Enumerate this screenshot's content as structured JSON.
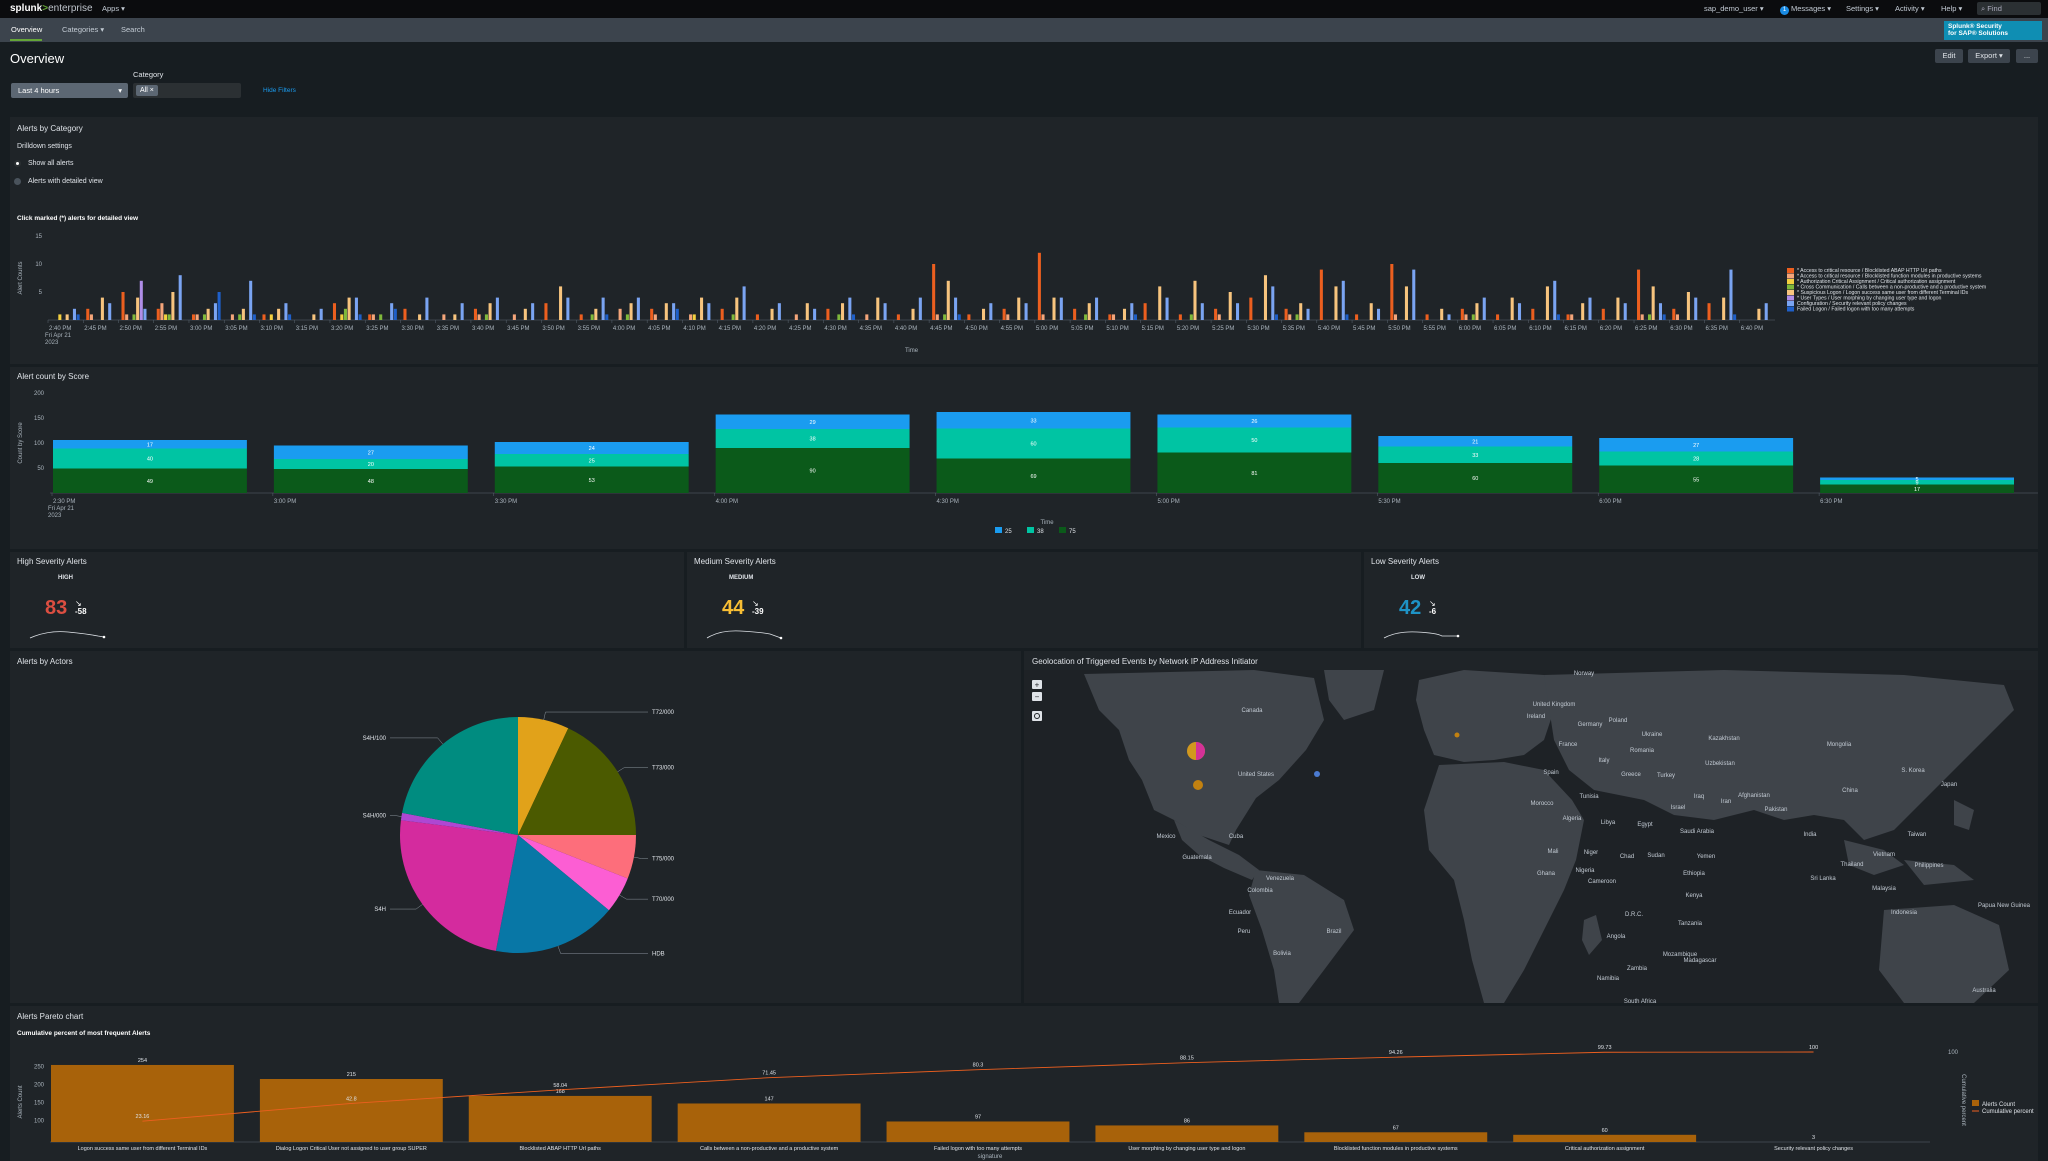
{
  "topbar": {
    "logo_splunk": "splunk",
    "logo_gt": ">",
    "logo_enterprise": "enterprise",
    "apps": "Apps ▾",
    "user": "sap_demo_user ▾",
    "messages_count": "1",
    "messages": "Messages ▾",
    "settings": "Settings ▾",
    "activity": "Activity ▾",
    "help": "Help ▾",
    "find_placeholder": "Find"
  },
  "appbar": {
    "overview": "Overview",
    "categories": "Categories ▾",
    "search": "Search",
    "brand_line1": "Splunk® Security",
    "brand_line2": "for SAP® Solutions"
  },
  "header": {
    "title": "Overview",
    "edit": "Edit",
    "export": "Export ▾",
    "more": "..."
  },
  "filters": {
    "time_value": "Last 4 hours",
    "category_label": "Category",
    "category_chip": "All ×",
    "hide_filters": "Hide Filters"
  },
  "alerts_by_category": {
    "title": "Alerts by Category",
    "drilldown": "Drilldown settings",
    "radio_all": "Show all alerts",
    "radio_detail": "Alerts with detailed view",
    "subtitle": "Click marked (*) alerts for detailed view",
    "ylabel": "Alert Counts",
    "xlabel": "Time",
    "first_tick_date": "Fri Apr 21",
    "first_tick_year": "2023",
    "yticks": [
      "5",
      "10",
      "15"
    ],
    "xticks": [
      "2:40 PM",
      "2:45 PM",
      "2:50 PM",
      "2:55 PM",
      "3:00 PM",
      "3:05 PM",
      "3:10 PM",
      "3:15 PM",
      "3:20 PM",
      "3:25 PM",
      "3:30 PM",
      "3:35 PM",
      "3:40 PM",
      "3:45 PM",
      "3:50 PM",
      "3:55 PM",
      "4:00 PM",
      "4:05 PM",
      "4:10 PM",
      "4:15 PM",
      "4:20 PM",
      "4:25 PM",
      "4:30 PM",
      "4:35 PM",
      "4:40 PM",
      "4:45 PM",
      "4:50 PM",
      "4:55 PM",
      "5:00 PM",
      "5:05 PM",
      "5:10 PM",
      "5:15 PM",
      "5:20 PM",
      "5:25 PM",
      "5:30 PM",
      "5:35 PM",
      "5:40 PM",
      "5:45 PM",
      "5:50 PM",
      "5:55 PM",
      "6:00 PM",
      "6:05 PM",
      "6:10 PM",
      "6:15 PM",
      "6:20 PM",
      "6:25 PM",
      "6:30 PM",
      "6:35 PM",
      "6:40 PM"
    ],
    "legend": [
      {
        "label": "* Access to critical resource / Blocklisted ABAP HTTP Url paths",
        "color": "#ec5f1f"
      },
      {
        "label": "* Access to critical resource / Blocklisted function modules in productive systems",
        "color": "#f4a57a"
      },
      {
        "label": "* Authorization Critical Assignment / Critical authorization assignment",
        "color": "#f4d03f"
      },
      {
        "label": "* Cross Communication / Calls between a non-productive and a productive system",
        "color": "#7fb83b"
      },
      {
        "label": "* Suspicious Logon / Logon success same user from different Terminal IDs",
        "color": "#f7c47e"
      },
      {
        "label": "* User Types / User morphing by changing user type and logon",
        "color": "#b08ee8"
      },
      {
        "label": "Configuration / Security relevant policy changes",
        "color": "#7aa4f2"
      },
      {
        "label": "Failed Logon / Failed logon with too many attempts",
        "color": "#1f5fc8"
      }
    ]
  },
  "alert_count_by_score": {
    "title": "Alert count by Score",
    "ylabel": "Count by Score",
    "xlabel": "Time",
    "first_tick_date": "Fri Apr 21",
    "first_tick_year": "2023",
    "yticks": [
      "50",
      "100",
      "150",
      "200"
    ],
    "xticks": [
      "2:30 PM",
      "3:00 PM",
      "3:30 PM",
      "4:00 PM",
      "4:30 PM",
      "5:00 PM",
      "5:30 PM",
      "6:00 PM",
      "6:30 PM"
    ],
    "legend": [
      {
        "label": "25",
        "color": "#1a9cf0"
      },
      {
        "label": "38",
        "color": "#00c4a3"
      },
      {
        "label": "75",
        "color": "#0b5a1a"
      }
    ]
  },
  "severity": {
    "high": {
      "title": "High Severity Alerts",
      "label": "HIGH",
      "value": "83",
      "delta": "-58",
      "color": "#dc4e41"
    },
    "medium": {
      "title": "Medium Severity Alerts",
      "label": "MEDIUM",
      "value": "44",
      "delta": "-39",
      "color": "#f8be34"
    },
    "low": {
      "title": "Low Severity Alerts",
      "label": "LOW",
      "value": "42",
      "delta": "-6",
      "color": "#1e93c6"
    }
  },
  "alerts_by_actors": {
    "title": "Alerts by Actors"
  },
  "geolocation": {
    "title": "Geolocation of Triggered Events by Network IP Address Initiator",
    "countries": [
      "Norway",
      "United Kingdom",
      "Ireland",
      "Germany",
      "Poland",
      "Ukraine",
      "Kazakhstan",
      "Mongolia",
      "France",
      "Romania",
      "Uzbekistan",
      "Canada",
      "Italy",
      "Spain",
      "Greece",
      "Turkey",
      "United States",
      "Tunisia",
      "Iraq",
      "Afghanistan",
      "China",
      "S. Korea",
      "Morocco",
      "Iran",
      "Japan",
      "Algeria",
      "Libya",
      "Egypt",
      "Israel",
      "Pakistan",
      "Mexico",
      "Saudi Arabia",
      "India",
      "Taiwan",
      "Cuba",
      "Guatemala",
      "Mali",
      "Niger",
      "Chad",
      "Sudan",
      "Yemen",
      "Vietnam",
      "Philippines",
      "Thailand",
      "Venezuela",
      "Ghana",
      "Nigeria",
      "Cameroon",
      "Ethiopia",
      "Sri Lanka",
      "Colombia",
      "Ecuador",
      "Kenya",
      "Malaysia",
      "Peru",
      "Brazil",
      "D.R.C.",
      "Tanzania",
      "Papua New Guinea",
      "Indonesia",
      "Bolivia",
      "Angola",
      "Mozambique",
      "Zambia",
      "Madagascar",
      "Namibia",
      "South Africa",
      "Australia"
    ]
  },
  "pareto": {
    "title": "Alerts Pareto chart",
    "subtitle": "Cumulative percent of most frequent Alerts",
    "ylabel": "Alerts Count",
    "y2label": "Cumulative percent",
    "xlabel": "signature",
    "yticks": [
      "100",
      "150",
      "200",
      "250"
    ],
    "y2ticks": [
      "100"
    ],
    "legend": [
      "Alerts Count",
      "Cumulative percent"
    ]
  },
  "chart_data": [
    {
      "type": "bar",
      "name": "alerts_by_category",
      "title": "Alerts by Category",
      "xlabel": "Time",
      "ylabel": "Alert Counts",
      "ylim": [
        0,
        15
      ],
      "legend_position": "right",
      "series_colors": [
        "#ec5f1f",
        "#f4a57a",
        "#f4d03f",
        "#7fb83b",
        "#f7c47e",
        "#b08ee8",
        "#7aa4f2",
        "#1f5fc8"
      ],
      "groups": [
        [
          0,
          0,
          1,
          0,
          1,
          0,
          2,
          1
        ],
        [
          2,
          1,
          0,
          0,
          4,
          0,
          3,
          0
        ],
        [
          5,
          1,
          0,
          1,
          4,
          7,
          2,
          0
        ],
        [
          2,
          3,
          1,
          1,
          5,
          0,
          8,
          0
        ],
        [
          1,
          1,
          0,
          1,
          2,
          0,
          3,
          5
        ],
        [
          0,
          1,
          0,
          1,
          2,
          0,
          7,
          1
        ],
        [
          1,
          0,
          1,
          0,
          2,
          0,
          3,
          1
        ],
        [
          0,
          0,
          0,
          0,
          1,
          0,
          2,
          0
        ],
        [
          3,
          0,
          1,
          2,
          4,
          0,
          4,
          1
        ],
        [
          1,
          1,
          0,
          1,
          0,
          0,
          3,
          2
        ],
        [
          2,
          0,
          0,
          0,
          1,
          0,
          4,
          0
        ],
        [
          0,
          1,
          0,
          0,
          1,
          0,
          3,
          0
        ],
        [
          2,
          1,
          0,
          1,
          3,
          0,
          4,
          0
        ],
        [
          0,
          1,
          0,
          0,
          2,
          0,
          3,
          0
        ],
        [
          3,
          0,
          0,
          0,
          6,
          0,
          4,
          0
        ],
        [
          1,
          0,
          0,
          1,
          2,
          0,
          4,
          1
        ],
        [
          0,
          2,
          0,
          1,
          3,
          0,
          4,
          0
        ],
        [
          2,
          1,
          0,
          0,
          3,
          0,
          3,
          2
        ],
        [
          0,
          1,
          1,
          0,
          4,
          0,
          3,
          0
        ],
        [
          2,
          0,
          0,
          1,
          4,
          0,
          6,
          0
        ],
        [
          1,
          0,
          0,
          0,
          2,
          0,
          3,
          0
        ],
        [
          0,
          1,
          0,
          0,
          3,
          0,
          2,
          0
        ],
        [
          2,
          0,
          0,
          1,
          3,
          0,
          4,
          1
        ],
        [
          0,
          1,
          0,
          0,
          4,
          0,
          3,
          0
        ],
        [
          1,
          0,
          0,
          0,
          2,
          0,
          4,
          0
        ],
        [
          10,
          1,
          0,
          1,
          7,
          0,
          4,
          1
        ],
        [
          1,
          0,
          0,
          0,
          2,
          0,
          3,
          0
        ],
        [
          2,
          1,
          0,
          0,
          4,
          0,
          3,
          0
        ],
        [
          12,
          1,
          0,
          0,
          4,
          0,
          4,
          0
        ],
        [
          2,
          0,
          0,
          1,
          3,
          0,
          4,
          0
        ],
        [
          1,
          1,
          0,
          0,
          2,
          0,
          3,
          1
        ],
        [
          3,
          0,
          0,
          0,
          6,
          0,
          4,
          0
        ],
        [
          1,
          0,
          0,
          1,
          7,
          0,
          3,
          0
        ],
        [
          2,
          1,
          0,
          0,
          5,
          0,
          3,
          0
        ],
        [
          4,
          0,
          0,
          0,
          8,
          0,
          6,
          1
        ],
        [
          2,
          1,
          0,
          1,
          3,
          0,
          2,
          0
        ],
        [
          9,
          0,
          0,
          0,
          6,
          0,
          7,
          1
        ],
        [
          1,
          0,
          0,
          0,
          3,
          0,
          2,
          0
        ],
        [
          10,
          1,
          0,
          0,
          6,
          0,
          9,
          0
        ],
        [
          1,
          0,
          0,
          0,
          2,
          0,
          1,
          0
        ],
        [
          2,
          1,
          0,
          1,
          3,
          0,
          4,
          0
        ],
        [
          1,
          0,
          0,
          0,
          4,
          0,
          3,
          0
        ],
        [
          2,
          0,
          0,
          0,
          6,
          0,
          7,
          1
        ],
        [
          1,
          1,
          0,
          0,
          3,
          0,
          4,
          0
        ],
        [
          2,
          0,
          0,
          0,
          4,
          0,
          3,
          0
        ],
        [
          9,
          1,
          0,
          1,
          6,
          0,
          3,
          1
        ],
        [
          2,
          1,
          0,
          0,
          5,
          0,
          4,
          0
        ],
        [
          3,
          0,
          0,
          0,
          4,
          0,
          9,
          1
        ],
        [
          0,
          0,
          0,
          0,
          2,
          0,
          3,
          0
        ]
      ]
    },
    {
      "type": "bar",
      "name": "alert_count_by_score",
      "title": "Alert count by Score",
      "stacked": true,
      "xlabel": "Time",
      "ylabel": "Count by Score",
      "ylim": [
        0,
        200
      ],
      "legend_position": "bottom",
      "categories": [
        "2:30 PM",
        "3:00 PM",
        "3:30 PM",
        "4:00 PM",
        "4:30 PM",
        "5:00 PM",
        "5:30 PM",
        "6:00 PM",
        "6:30 PM"
      ],
      "series": [
        {
          "name": "75",
          "color": "#0b5a1a",
          "values": [
            49,
            48,
            53,
            90,
            69,
            81,
            60,
            55,
            17
          ]
        },
        {
          "name": "38",
          "color": "#00c4a3",
          "values": [
            40,
            20,
            25,
            38,
            60,
            50,
            33,
            28,
            9
          ]
        },
        {
          "name": "25",
          "color": "#1a9cf0",
          "values": [
            17,
            27,
            24,
            29,
            33,
            26,
            21,
            27,
            5
          ]
        }
      ]
    },
    {
      "type": "pie",
      "name": "alerts_by_actors",
      "title": "Alerts by Actors",
      "slices": [
        {
          "label": "T72/000",
          "value": 7,
          "color": "#e1a21a"
        },
        {
          "label": "T73/000",
          "value": 18,
          "color": "#4b5a00"
        },
        {
          "label": "T75/000",
          "value": 6,
          "color": "#fd6e7b"
        },
        {
          "label": "T70/000",
          "value": 5,
          "color": "#fc5ed3"
        },
        {
          "label": "HDB",
          "value": 17,
          "color": "#0877a6"
        },
        {
          "label": "S4H",
          "value": 24,
          "color": "#d42b9e"
        },
        {
          "label": "S4H/000",
          "value": 1,
          "color": "#ae47d3"
        },
        {
          "label": "S4H/100",
          "value": 22,
          "color": "#008c80"
        }
      ]
    },
    {
      "type": "bar",
      "name": "alerts_pareto",
      "title": "Alerts Pareto chart",
      "subtitle": "Cumulative percent of most frequent Alerts",
      "xlabel": "signature",
      "ylabel": "Alerts Count",
      "y2label": "Cumulative percent",
      "ylim": [
        0,
        300
      ],
      "y2lim": [
        0,
        100
      ],
      "legend_position": "right",
      "categories": [
        "Logon success same user from different Terminal IDs",
        "Dialog Logon Critical User not assigned to user group SUPER",
        "Blocklisted ABAP HTTP Url paths",
        "Calls between a non-productive and a productive system",
        "Failed logon with too many attempts",
        "User morphing by changing user type and logon",
        "Blocklisted function modules in productive systems",
        "Critical authorization assignment",
        "Security relevant policy changes"
      ],
      "series": [
        {
          "name": "Alerts Count",
          "color": "#a8620a",
          "values": [
            254,
            215,
            168,
            147,
            97,
            86,
            67,
            60,
            3
          ]
        },
        {
          "name": "Cumulative percent",
          "color": "#ec5f1f",
          "values": [
            23.16,
            42.8,
            58.04,
            71.45,
            80.3,
            88.15,
            94.26,
            99.73,
            100
          ]
        }
      ]
    }
  ]
}
